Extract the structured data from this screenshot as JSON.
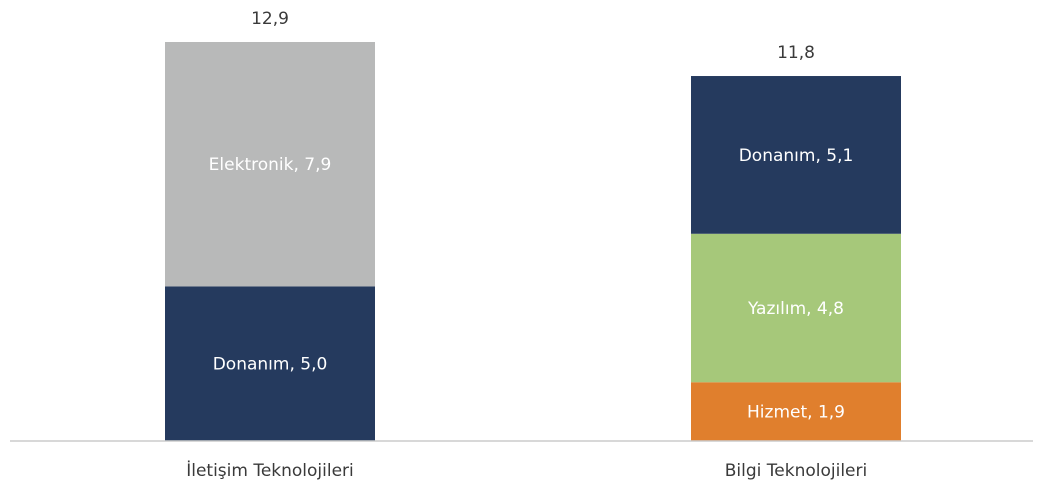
{
  "chart_data": {
    "type": "bar",
    "stacked": true,
    "categories": [
      "İletişim Teknolojileri",
      "Bilgi Teknolojileri"
    ],
    "totals": [
      "12,9",
      "11,8"
    ],
    "stacks": [
      {
        "category": "İletişim Teknolojileri",
        "total": 12.9,
        "segments": [
          {
            "label": "Donanım, 5,0",
            "value": 5.0,
            "color": "#253a5e"
          },
          {
            "label": "Elektronik, 7,9",
            "value": 7.9,
            "color": "#b8b9b9"
          }
        ]
      },
      {
        "category": "Bilgi Teknolojileri",
        "total": 11.8,
        "segments": [
          {
            "label": "Hizmet, 1,9",
            "value": 1.9,
            "color": "#e07f2d"
          },
          {
            "label": "Yazılım, 4,8",
            "value": 4.8,
            "color": "#a6c87a"
          },
          {
            "label": "Donanım, 5,1",
            "value": 5.1,
            "color": "#253a5e"
          }
        ]
      }
    ],
    "axis_color": "#cccccc",
    "ylim": [
      0,
      12.9
    ],
    "legend": "none",
    "grid": false
  }
}
